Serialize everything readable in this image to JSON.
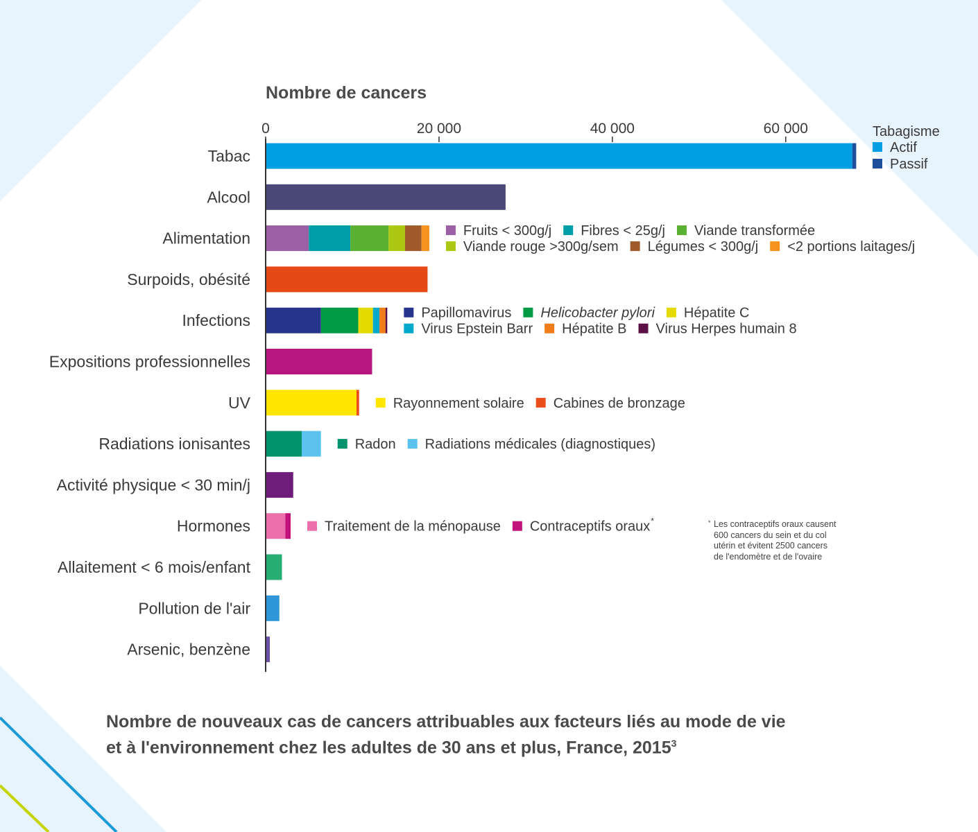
{
  "colors": {
    "background": "#e8f4fd",
    "panel": "#ffffff",
    "accent_blue": "#1a9ad6",
    "accent_lime": "#c5d300"
  },
  "caption": {
    "line1": "Nombre de nouveaux cas de cancers attribuables aux facteurs liés au mode de vie",
    "line2": "et à l'environnement chez les adultes de 30 ans et plus, France, 2015",
    "superscript": "3"
  },
  "footnote": {
    "marker": "*",
    "lines": [
      "Les contraceptifs oraux causent",
      "600 cancers du sein et du col",
      "utérin et évitent 2500 cancers",
      "de l'endomètre et de l'ovaire"
    ]
  },
  "chart_data": {
    "type": "bar",
    "orientation": "horizontal",
    "stacked": true,
    "title": "Nombre de cancers",
    "xlim": [
      0,
      68500
    ],
    "xticks": [
      0,
      20000,
      40000,
      60000
    ],
    "xtick_labels": [
      "0",
      "20 000",
      "40 000",
      "60 000"
    ],
    "grid": false,
    "categories": [
      {
        "label": "Tabac",
        "segments": [
          {
            "name": "Actif",
            "value": 67600,
            "color": "#009fe3"
          },
          {
            "name": "Passif",
            "value": 450,
            "color": "#1d4f9c"
          }
        ]
      },
      {
        "label": "Alcool",
        "segments": [
          {
            "name": "Alcool",
            "value": 27600,
            "color": "#4a4876"
          }
        ]
      },
      {
        "label": "Alimentation",
        "segments": [
          {
            "name": "Fruits < 300g/j",
            "value": 4900,
            "color": "#9b5fa6"
          },
          {
            "name": "Fibres < 25g/j",
            "value": 4800,
            "color": "#009ea6"
          },
          {
            "name": "Viande transformée",
            "value": 4400,
            "color": "#5ab031"
          },
          {
            "name": "Viande rouge >300g/sem",
            "value": 1900,
            "color": "#acc812"
          },
          {
            "name": "Légumes < 300g/j",
            "value": 1900,
            "color": "#a05b2c"
          },
          {
            "name": "<2 portions laitages/j",
            "value": 900,
            "color": "#f6931e"
          }
        ]
      },
      {
        "label": "Surpoids, obésité",
        "segments": [
          {
            "name": "Surpoids, obésité",
            "value": 18600,
            "color": "#e54a16"
          }
        ]
      },
      {
        "label": "Infections",
        "segments": [
          {
            "name": "Papillomavirus",
            "value": 6300,
            "color": "#27348b"
          },
          {
            "name": "Helicobacter pylori",
            "value": 4300,
            "color": "#009a44"
          },
          {
            "name": "Hépatite C",
            "value": 1700,
            "color": "#e5da00"
          },
          {
            "name": "Virus Epstein Barr",
            "value": 750,
            "color": "#00a8cc"
          },
          {
            "name": "Hépatite B",
            "value": 700,
            "color": "#f07c1a"
          },
          {
            "name": "Virus Herpes humain 8",
            "value": 200,
            "color": "#5c1146"
          }
        ]
      },
      {
        "label": "Expositions professionnelles",
        "segments": [
          {
            "name": "Expositions professionnelles",
            "value": 12200,
            "color": "#b7157f"
          }
        ]
      },
      {
        "label": "UV",
        "segments": [
          {
            "name": "Rayonnement solaire",
            "value": 10400,
            "color": "#ffe600"
          },
          {
            "name": "Cabines de bronzage",
            "value": 300,
            "color": "#e94e1b"
          }
        ]
      },
      {
        "label": "Radiations ionisantes",
        "segments": [
          {
            "name": "Radon",
            "value": 4100,
            "color": "#00936e"
          },
          {
            "name": "Radiations médicales (diagnostiques)",
            "value": 2200,
            "color": "#5bc2ee"
          }
        ]
      },
      {
        "label": "Activité physique < 30 min/j",
        "segments": [
          {
            "name": "Activité physique < 30 min/j",
            "value": 3100,
            "color": "#6e1e7a"
          }
        ]
      },
      {
        "label": "Hormones",
        "segments": [
          {
            "name": "Traitement de la ménopause",
            "value": 2200,
            "color": "#ea6fab"
          },
          {
            "name": "Contraceptifs oraux",
            "value": 600,
            "color": "#c0127a"
          }
        ]
      },
      {
        "label": "Allaitement < 6 mois/enfant",
        "segments": [
          {
            "name": "Allaitement < 6 mois/enfant",
            "value": 1800,
            "color": "#27ae72"
          }
        ]
      },
      {
        "label": "Pollution de l'air",
        "segments": [
          {
            "name": "Pollution de l'air",
            "value": 1500,
            "color": "#2e96d6"
          }
        ]
      },
      {
        "label": "Arsenic, benzène",
        "segments": [
          {
            "name": "Arsenic, benzène",
            "value": 400,
            "color": "#6a50a7"
          }
        ]
      }
    ],
    "legends": [
      {
        "category": "Tabac",
        "placement": "top-right",
        "title": "Tabagisme",
        "rows": [
          [
            {
              "name": "Actif",
              "color": "#009fe3"
            }
          ],
          [
            {
              "name": "Passif",
              "color": "#1d4f9c"
            }
          ]
        ]
      },
      {
        "category": "Alimentation",
        "placement": "right-of-bar",
        "rows": [
          [
            {
              "name": "Fruits < 300g/j",
              "color": "#9b5fa6"
            },
            {
              "name": "Fibres < 25g/j",
              "color": "#009ea6"
            },
            {
              "name": "Viande transformée",
              "color": "#5ab031"
            }
          ],
          [
            {
              "name": "Viande rouge >300g/sem",
              "color": "#acc812"
            },
            {
              "name": "Légumes < 300g/j",
              "color": "#a05b2c"
            },
            {
              "name": "<2 portions laitages/j",
              "color": "#f6931e"
            }
          ]
        ]
      },
      {
        "category": "Infections",
        "placement": "right-of-bar",
        "rows": [
          [
            {
              "name": "Papillomavirus",
              "color": "#27348b"
            },
            {
              "name": "Helicobacter pylori",
              "color": "#009a44",
              "italic": true
            },
            {
              "name": "Hépatite C",
              "color": "#e5da00"
            }
          ],
          [
            {
              "name": "Virus Epstein Barr",
              "color": "#00a8cc"
            },
            {
              "name": "Hépatite B",
              "color": "#f07c1a"
            },
            {
              "name": "Virus Herpes humain 8",
              "color": "#5c1146"
            }
          ]
        ]
      },
      {
        "category": "UV",
        "placement": "right-of-bar",
        "rows": [
          [
            {
              "name": "Rayonnement solaire",
              "color": "#ffe600"
            },
            {
              "name": "Cabines de bronzage",
              "color": "#e94e1b"
            }
          ]
        ]
      },
      {
        "category": "Radiations ionisantes",
        "placement": "right-of-bar",
        "rows": [
          [
            {
              "name": "Radon",
              "color": "#00936e"
            },
            {
              "name": "Radiations médicales (diagnostiques)",
              "color": "#5bc2ee"
            }
          ]
        ]
      },
      {
        "category": "Hormones",
        "placement": "right-of-bar",
        "rows": [
          [
            {
              "name": "Traitement de la ménopause",
              "color": "#ea6fab"
            },
            {
              "name": "Contraceptifs oraux",
              "color": "#c0127a",
              "sup": "*"
            }
          ]
        ]
      }
    ]
  }
}
